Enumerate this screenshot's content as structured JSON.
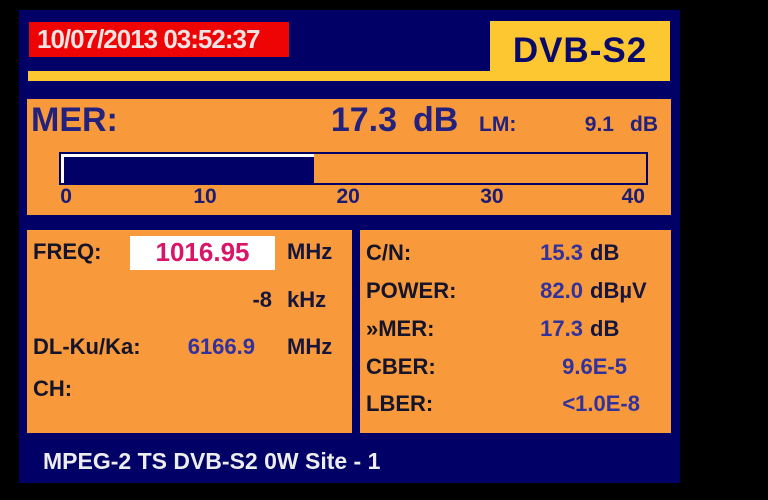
{
  "header": {
    "datetime": "10/07/2013 03:52:37",
    "mode": "DVB-S2"
  },
  "mer": {
    "label": "MER:",
    "value": "17.3",
    "unit": "dB",
    "lm_label": "LM:",
    "lm_value": "9.1",
    "lm_unit": "dB"
  },
  "mer_gauge": {
    "type": "bar",
    "min": 0,
    "max": 40,
    "value": 17.3,
    "fill_percent": 43.3,
    "scale": [
      "0",
      "10",
      "20",
      "30",
      "40"
    ]
  },
  "tuning": {
    "freq_label": "FREQ:",
    "freq_value": "1016.95",
    "freq_unit": "MHz",
    "offset_value": "-8",
    "offset_unit": "kHz",
    "dl_label": "DL-Ku/Ka:",
    "dl_value": "6166.9",
    "dl_unit": "MHz",
    "ch_label": "CH:"
  },
  "measurements": {
    "rows": [
      {
        "label": "C/N:",
        "value": "15.3",
        "unit": "dB"
      },
      {
        "label": "POWER:",
        "value": "82.0",
        "unit": "dBµV"
      },
      {
        "label": "»MER:",
        "value": "17.3",
        "unit": "dB"
      },
      {
        "label": "CBER:",
        "value": "9.6E-5",
        "unit": ""
      },
      {
        "label": "LBER:",
        "value": "<1.0E-8",
        "unit": ""
      }
    ]
  },
  "status_bar": {
    "text": "MPEG-2 TS DVB-S2 0W Site - 1"
  },
  "colors": {
    "background": "#000000",
    "screen_navy": "#000066",
    "panel_orange": "#F8993B",
    "accent_gold": "#FCC730",
    "alert_red": "#EE0404",
    "freq_magenta": "#D81568",
    "value_blue": "#32329C",
    "text_navy": "#22227E",
    "text_white": "#EDEDED"
  }
}
